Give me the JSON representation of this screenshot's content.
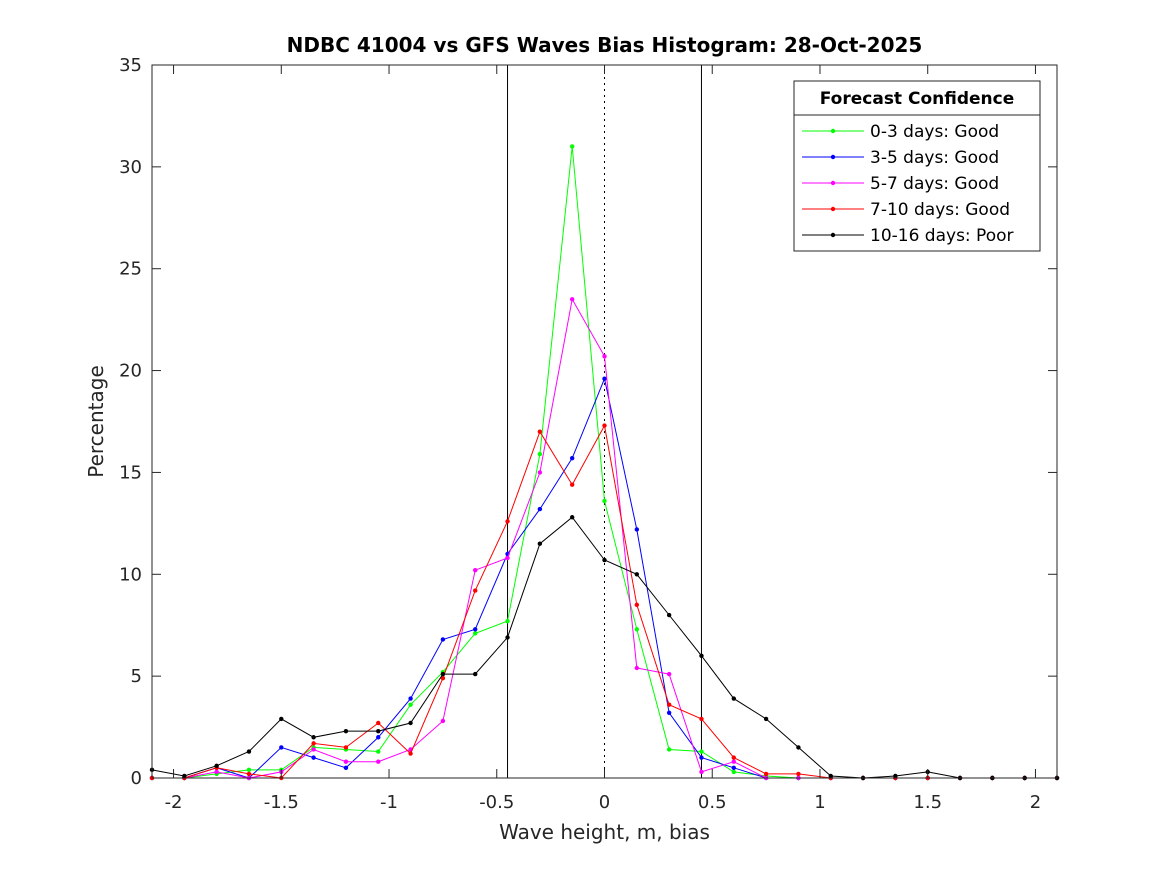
{
  "chart_data": {
    "type": "line",
    "title": "NDBC 41004 vs GFS Waves Bias Histogram: 28-Oct-2025",
    "xlabel": "Wave height, m, bias",
    "ylabel": "Percentage",
    "xlim": [
      -2.1,
      2.1
    ],
    "ylim": [
      0,
      35
    ],
    "xticks": [
      -2,
      -1.5,
      -1,
      -0.5,
      0,
      0.5,
      1,
      1.5,
      2
    ],
    "xtick_labels": [
      "-2",
      "-1.5",
      "-1",
      "-0.5",
      "0",
      "0.5",
      "1",
      "1.5",
      "2"
    ],
    "yticks": [
      0,
      5,
      10,
      15,
      20,
      25,
      30,
      35
    ],
    "ytick_labels": [
      "0",
      "5",
      "10",
      "15",
      "20",
      "25",
      "30",
      "35"
    ],
    "vertical_lines": [
      {
        "x": -0.45,
        "style": "solid"
      },
      {
        "x": 0,
        "style": "dotted"
      },
      {
        "x": 0.45,
        "style": "solid"
      }
    ],
    "legend_title": "Forecast Confidence",
    "legend_position": "top-right",
    "x": [
      -2.1,
      -1.95,
      -1.8,
      -1.65,
      -1.5,
      -1.35,
      -1.2,
      -1.05,
      -0.9,
      -0.75,
      -0.6,
      -0.45,
      -0.3,
      -0.15,
      0,
      0.15,
      0.3,
      0.45,
      0.6,
      0.75,
      0.9,
      1.05,
      1.2,
      1.35,
      1.5,
      1.65,
      1.8,
      1.95,
      2.1
    ],
    "series": [
      {
        "name": "0-3 days: Good",
        "color": "#00ff00",
        "values": [
          0,
          0,
          0.2,
          0.4,
          0.4,
          1.5,
          1.4,
          1.3,
          3.6,
          5.2,
          7.1,
          7.7,
          15.9,
          31.0,
          13.6,
          7.3,
          1.4,
          1.3,
          0.3,
          0.1,
          0,
          0,
          0,
          0,
          0,
          0,
          0,
          0,
          0
        ]
      },
      {
        "name": "3-5 days: Good",
        "color": "#0000ff",
        "values": [
          0,
          0,
          0.5,
          0,
          1.5,
          1.0,
          0.5,
          2.0,
          3.9,
          6.8,
          7.3,
          11.0,
          13.2,
          15.7,
          19.6,
          12.2,
          3.2,
          1.0,
          0.5,
          0,
          0,
          0,
          0,
          0,
          0,
          0,
          0,
          0,
          0
        ]
      },
      {
        "name": "5-7 days: Good",
        "color": "#ff00ff",
        "values": [
          0,
          0,
          0.3,
          0,
          0.3,
          1.4,
          0.8,
          0.8,
          1.4,
          2.8,
          10.2,
          10.8,
          15.0,
          23.5,
          20.7,
          5.4,
          5.1,
          0.3,
          0.8,
          0,
          0,
          0,
          0,
          0,
          0,
          0,
          0,
          0,
          0
        ]
      },
      {
        "name": "7-10 days: Good",
        "color": "#ff0000",
        "values": [
          0,
          0,
          0.5,
          0.2,
          0,
          1.7,
          1.5,
          2.7,
          1.2,
          4.9,
          9.2,
          12.6,
          17.0,
          14.4,
          17.3,
          8.5,
          3.6,
          2.9,
          1.0,
          0.2,
          0.2,
          0,
          0,
          0,
          0,
          0,
          0,
          0,
          0
        ]
      },
      {
        "name": "10-16 days: Poor",
        "color": "#000000",
        "values": [
          0.4,
          0.1,
          0.6,
          1.3,
          2.9,
          2.0,
          2.3,
          2.3,
          2.7,
          5.1,
          5.1,
          6.9,
          11.5,
          12.8,
          10.7,
          10.0,
          8.0,
          6.0,
          3.9,
          2.9,
          1.5,
          0.1,
          0,
          0.1,
          0.3,
          0,
          0,
          0,
          0
        ]
      }
    ]
  }
}
